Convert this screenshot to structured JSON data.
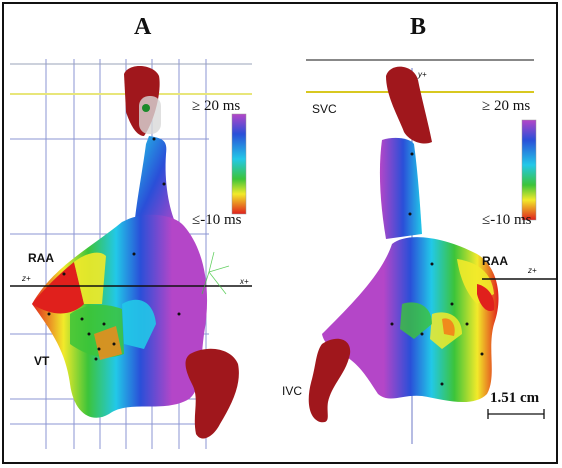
{
  "panels": {
    "a": {
      "letter": "A",
      "scale_max": "≥ 20 ms",
      "scale_min": "≤-10 ms",
      "labels": {
        "raa": "RAA",
        "vt": "VT"
      },
      "axes": {
        "z": "z+",
        "x": "x+"
      }
    },
    "b": {
      "letter": "B",
      "scale_max": "≥ 20 ms",
      "scale_min": "≤-10 ms",
      "labels": {
        "svc": "SVC",
        "raa": "RAA",
        "ivc": "IVC"
      },
      "axes": {
        "y": "y+",
        "z": "z+"
      },
      "scale_bar": "1.51 cm"
    }
  },
  "colors": {
    "red": "#e0201c",
    "orange": "#f08a1c",
    "yellow": "#f2ea2a",
    "green": "#3cc43a",
    "cyan": "#22c8e8",
    "blue": "#2a4fd8",
    "purple": "#b446c8",
    "vessel": "#a0171c",
    "grid": "#2e3fb0",
    "yellow_line": "#e8e67a"
  }
}
